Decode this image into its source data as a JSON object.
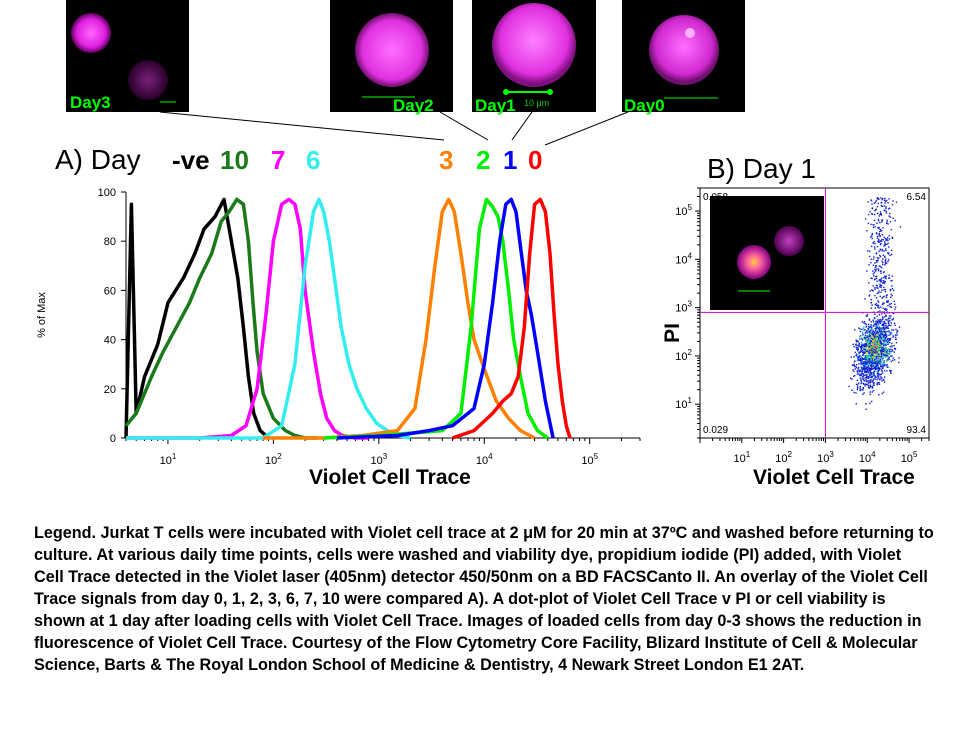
{
  "images": [
    {
      "id": "img-day3",
      "label": "Day3",
      "scale": "",
      "color": "#ff00ff"
    },
    {
      "id": "img-day2",
      "label": "Day2",
      "scale": "",
      "color": "#ff44ff"
    },
    {
      "id": "img-day1",
      "label": "Day1",
      "scale": "10 μm",
      "color": "#ff44ff"
    },
    {
      "id": "img-day0",
      "label": "Day0",
      "scale": "",
      "color": "#ff44ff"
    }
  ],
  "panel_a": {
    "title": "A) Day",
    "keys": [
      {
        "text": "-ve",
        "color": "#000000"
      },
      {
        "text": "10",
        "color": "#1a7a1a"
      },
      {
        "text": "7",
        "color": "#ff00ff"
      },
      {
        "text": "6",
        "color": "#33eeee"
      },
      {
        "text": "3",
        "color": "#ff8000"
      },
      {
        "text": "2",
        "color": "#00ee00"
      },
      {
        "text": "1",
        "color": "#0000ff"
      },
      {
        "text": "0",
        "color": "#ff0000"
      }
    ],
    "y_axis_label": "% of Max",
    "x_axis_label": "Violet Cell Trace"
  },
  "panel_b": {
    "title": "B) Day 1",
    "y_axis_label": "PI",
    "x_axis_label": "Violet Cell Trace",
    "quadrants": {
      "top_left": "0.058",
      "top_right": "6.54",
      "bottom_left": "0.029",
      "bottom_right": "93.4"
    }
  },
  "legend": "Legend. Jurkat T cells were incubated with Violet cell trace at 2 μM for 20 min at 37ºC and washed before returning to culture. At various daily time points, cells were washed and viability dye, propidium iodide (PI) added, with Violet Cell Trace detected in the Violet laser (405nm) detector 450/50nm on a BD FACSCanto II. An overlay of the Violet Cell Trace signals from day 0, 1, 2, 3, 6, 7, 10 were compared A). A dot-plot of Violet Cell Trace v PI or cell viability is shown at 1 day after loading cells with Violet Cell Trace. Images of loaded cells from day 0-3 shows the reduction in fluorescence of Violet Cell Trace. Courtesy of the Flow Cytometry Core Facility, Blizard Institute of Cell & Molecular Science, Barts & The Royal London School of Medicine & Dentistry, 4 Newark Street London E1 2AT.",
  "chart_data": [
    {
      "type": "line",
      "title": "A) Day",
      "xlabel": "Violet Cell Trace",
      "ylabel": "% of Max",
      "x_scale": "log",
      "xlim": [
        4,
        300000
      ],
      "ylim": [
        0,
        100
      ],
      "y_ticks": [
        0,
        20,
        40,
        60,
        80,
        100
      ],
      "x_tick_labels": [
        {
          "base": "10",
          "exp": "1"
        },
        {
          "base": "10",
          "exp": "2"
        },
        {
          "base": "10",
          "exp": "3"
        },
        {
          "base": "10",
          "exp": "4"
        },
        {
          "base": "10",
          "exp": "5"
        }
      ],
      "series": [
        {
          "name": "-ve",
          "color": "#000000",
          "x": [
            4,
            4.5,
            5,
            6,
            8,
            10,
            14,
            18,
            22,
            28,
            34,
            40,
            46,
            52,
            58,
            65,
            75,
            90
          ],
          "y": [
            0,
            95,
            10,
            25,
            38,
            55,
            65,
            75,
            85,
            90,
            97,
            80,
            65,
            45,
            25,
            10,
            3,
            0
          ]
        },
        {
          "name": "10",
          "color": "#1a7a1a",
          "x": [
            4,
            5,
            7,
            9,
            12,
            16,
            20,
            26,
            32,
            38,
            45,
            52,
            58,
            64,
            70,
            80,
            100,
            130,
            160,
            200,
            260
          ],
          "y": [
            5,
            10,
            25,
            35,
            45,
            55,
            65,
            75,
            88,
            92,
            97,
            95,
            80,
            55,
            35,
            18,
            8,
            3,
            1,
            0,
            0
          ]
        },
        {
          "name": "7",
          "color": "#ff00ff",
          "x": [
            4,
            20,
            40,
            55,
            70,
            85,
            100,
            120,
            140,
            160,
            180,
            200,
            240,
            280,
            320,
            380,
            450,
            600,
            800
          ],
          "y": [
            0,
            0,
            1,
            5,
            20,
            50,
            80,
            95,
            97,
            95,
            85,
            60,
            35,
            18,
            8,
            3,
            1,
            0,
            0
          ]
        },
        {
          "name": "6",
          "color": "#33eeee",
          "x": [
            4,
            80,
            120,
            160,
            200,
            240,
            270,
            300,
            340,
            380,
            440,
            520,
            620,
            760,
            950,
            1200,
            1500,
            2000
          ],
          "y": [
            0,
            0,
            5,
            30,
            70,
            92,
            97,
            92,
            80,
            65,
            45,
            30,
            20,
            12,
            6,
            3,
            1,
            0
          ]
        },
        {
          "name": "3",
          "color": "#ff8000",
          "x": [
            80,
            300,
            700,
            1500,
            2200,
            2800,
            3400,
            4000,
            4600,
            5200,
            6000,
            7000,
            8000,
            10000,
            13000,
            17000,
            22000,
            30000
          ],
          "y": [
            0,
            0,
            1,
            3,
            12,
            40,
            70,
            92,
            97,
            92,
            75,
            55,
            40,
            28,
            15,
            8,
            3,
            0
          ]
        },
        {
          "name": "2",
          "color": "#00ee00",
          "x": [
            300,
            1000,
            2000,
            4000,
            6000,
            7500,
            9000,
            10500,
            12000,
            13500,
            15000,
            17000,
            19000,
            22000,
            26000,
            32000,
            40000
          ],
          "y": [
            0,
            1,
            2,
            3,
            10,
            45,
            85,
            97,
            94,
            90,
            80,
            60,
            40,
            25,
            10,
            3,
            0
          ]
        },
        {
          "name": "1",
          "color": "#0000ff",
          "x": [
            400,
            1500,
            3000,
            5000,
            8000,
            10000,
            12000,
            14000,
            16000,
            18000,
            20000,
            22000,
            25000,
            28000,
            32000,
            38000,
            45000
          ],
          "y": [
            0,
            1,
            3,
            5,
            12,
            30,
            55,
            80,
            95,
            97,
            92,
            78,
            60,
            50,
            35,
            15,
            0
          ]
        },
        {
          "name": "0",
          "color": "#ff0000",
          "x": [
            5000,
            8000,
            12000,
            15000,
            18000,
            21000,
            24000,
            27000,
            30000,
            34000,
            38000,
            42000,
            46000,
            50000,
            55000,
            60000,
            65000
          ],
          "y": [
            0,
            3,
            10,
            15,
            18,
            25,
            45,
            75,
            95,
            97,
            92,
            75,
            50,
            30,
            15,
            5,
            0
          ]
        }
      ]
    },
    {
      "type": "scatter",
      "title": "B) Day 1",
      "xlabel": "Violet Cell Trace",
      "ylabel": "PI",
      "x_scale": "log",
      "y_scale": "log",
      "xlim": [
        1,
        300000
      ],
      "ylim": [
        2,
        300000
      ],
      "gates": {
        "x": 1000,
        "y": 800
      },
      "quadrant_percent": {
        "top_left": 0.058,
        "top_right": 6.54,
        "bottom_left": 0.029,
        "bottom_right": 93.4
      },
      "x_tick_labels": [
        {
          "base": "10",
          "exp": "1"
        },
        {
          "base": "10",
          "exp": "2"
        },
        {
          "base": "10",
          "exp": "3"
        },
        {
          "base": "10",
          "exp": "4"
        },
        {
          "base": "10",
          "exp": "5"
        }
      ],
      "y_tick_labels": [
        {
          "base": "10",
          "exp": "1"
        },
        {
          "base": "10",
          "exp": "2"
        },
        {
          "base": "10",
          "exp": "3"
        },
        {
          "base": "10",
          "exp": "4"
        },
        {
          "base": "10",
          "exp": "5"
        }
      ]
    }
  ]
}
